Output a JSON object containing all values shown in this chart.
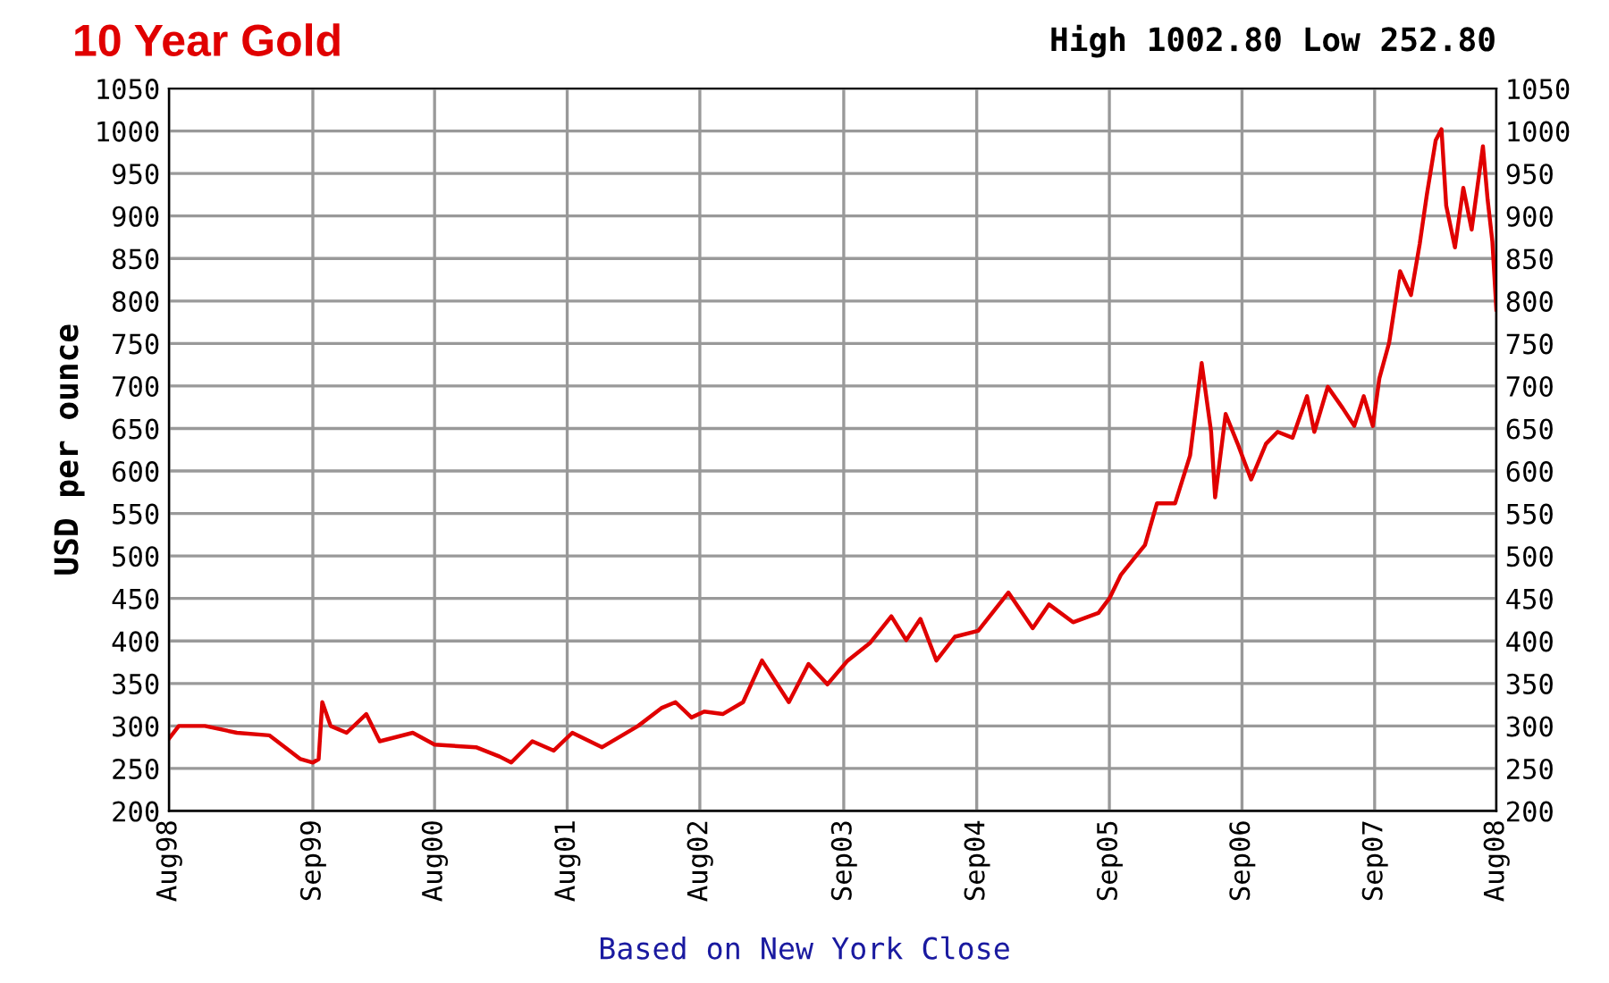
{
  "chart_data": {
    "type": "line",
    "title": "10 Year Gold",
    "subtitle": "High 1002.80 Low 252.80",
    "ylabel": "USD per ounce",
    "annotations": [
      "Based on New York Close"
    ],
    "xlim": [
      "1998-08-01",
      "2008-08-01"
    ],
    "xticks": [
      {
        "value": "1998-08-01",
        "label": "Aug98"
      },
      {
        "value": "1999-09-01",
        "label": "Sep99"
      },
      {
        "value": "2000-08-01",
        "label": "Aug00"
      },
      {
        "value": "2001-08-01",
        "label": "Aug01"
      },
      {
        "value": "2002-08-01",
        "label": "Aug02"
      },
      {
        "value": "2003-09-01",
        "label": "Sep03"
      },
      {
        "value": "2004-09-01",
        "label": "Sep04"
      },
      {
        "value": "2005-09-01",
        "label": "Sep05"
      },
      {
        "value": "2006-09-01",
        "label": "Sep06"
      },
      {
        "value": "2007-09-01",
        "label": "Sep07"
      },
      {
        "value": "2008-08-01",
        "label": "Aug08"
      }
    ],
    "ylim": [
      200,
      1050
    ],
    "yticks": [
      200,
      250,
      300,
      350,
      400,
      450,
      500,
      550,
      600,
      650,
      700,
      750,
      800,
      850,
      900,
      950,
      1000,
      1050
    ],
    "y2lim": [
      200,
      1050
    ],
    "y2ticks": [
      200,
      250,
      300,
      350,
      400,
      450,
      500,
      550,
      600,
      650,
      700,
      750,
      800,
      850,
      900,
      950,
      1000,
      1050
    ],
    "grid": true,
    "series": [
      {
        "color": "#e00000",
        "x": [
          "1998-08-01",
          "1998-08-28",
          "1998-11-08",
          "1999-02-04",
          "1999-05-04",
          "1999-07-29",
          "1999-09-01",
          "1999-09-17",
          "1999-09-27",
          "1999-10-20",
          "1999-12-03",
          "2000-01-26",
          "2000-03-03",
          "2000-06-02",
          "2000-08-01",
          "2000-11-23",
          "2001-01-27",
          "2001-02-28",
          "2001-04-27",
          "2001-06-25",
          "2001-08-15",
          "2001-11-05",
          "2002-02-12",
          "2002-04-17",
          "2002-05-26",
          "2002-07-09",
          "2002-08-13",
          "2002-10-03",
          "2002-11-28",
          "2003-01-19",
          "2003-04-03",
          "2003-05-27",
          "2003-07-18",
          "2003-09-12",
          "2003-11-13",
          "2004-01-10",
          "2004-02-20",
          "2004-03-30",
          "2004-05-13",
          "2004-07-03",
          "2004-09-05",
          "2004-11-27",
          "2005-02-02",
          "2005-03-19",
          "2005-05-24",
          "2005-08-02",
          "2005-09-01",
          "2005-10-03",
          "2005-12-08",
          "2006-01-10",
          "2006-03-01",
          "2006-04-11",
          "2006-05-13",
          "2006-06-08",
          "2006-06-19",
          "2006-07-18",
          "2006-08-20",
          "2006-09-26",
          "2006-11-06",
          "2006-12-08",
          "2007-01-18",
          "2007-02-27",
          "2007-03-19",
          "2007-04-25",
          "2007-06-05",
          "2007-07-07",
          "2007-08-02",
          "2007-08-27",
          "2007-09-14",
          "2007-10-11",
          "2007-11-10",
          "2007-12-10",
          "2008-01-03",
          "2008-01-23",
          "2008-02-16",
          "2008-03-03",
          "2008-03-16",
          "2008-04-09",
          "2008-05-02",
          "2008-05-25",
          "2008-06-25",
          "2008-07-08",
          "2008-07-21",
          "2008-08-01"
        ],
        "values": [
          285,
          300,
          300,
          292,
          289,
          261,
          257,
          261,
          328,
          300,
          292,
          314,
          282,
          292,
          278,
          275,
          264,
          257,
          282,
          271,
          292,
          275,
          300,
          321,
          328,
          310,
          317,
          314,
          328,
          377,
          328,
          373,
          349,
          377,
          398,
          429,
          401,
          426,
          377,
          405,
          412,
          457,
          415,
          443,
          422,
          433,
          450,
          478,
          513,
          562,
          562,
          618,
          727,
          646,
          569,
          667,
          632,
          590,
          632,
          646,
          639,
          688,
          646,
          699,
          674,
          653,
          688,
          653,
          709,
          751,
          835,
          807,
          867,
          926,
          989,
          1002,
          912,
          863,
          933,
          884,
          982,
          919,
          870,
          790
        ]
      }
    ]
  }
}
